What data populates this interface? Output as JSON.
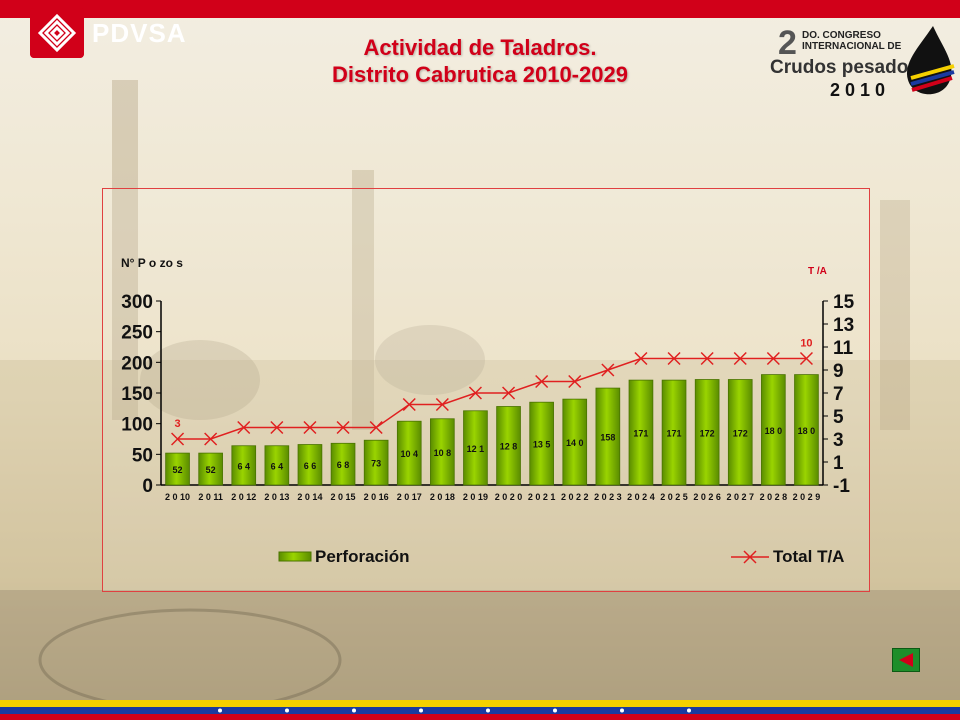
{
  "header": {
    "logo_text": "PDVSA",
    "title_line1": "Actividad de Taladros.",
    "title_line2": "Distrito Cabrutica 2010-2029"
  },
  "congress_logo": {
    "number": "2",
    "line1": "DO. CONGRESO",
    "line2": "INTERNACIONAL DE",
    "line3": "Crudos pesados",
    "year": "2 0 1 0"
  },
  "colors": {
    "brand_red": "#d10019",
    "bar_green": "#7cb800",
    "line_red": "#e02020",
    "flag_yellow": "#f5d000",
    "flag_blue": "#1a3aa0"
  },
  "icons": {
    "back_button": "back-triangle-icon"
  },
  "chart_data": {
    "type": "bar",
    "ylabel_left": "N° P o zo s",
    "ylabel_right": "T /A",
    "categories": [
      "2 0 10",
      "2 0 11",
      "2 0 12",
      "2 0 13",
      "2 0 14",
      "2 0 15",
      "2 0 16",
      "2 0 17",
      "2 0 18",
      "2 0 19",
      "2 0 2 0",
      "2 0 2 1",
      "2 0 2 2",
      "2 0 2 3",
      "2 0 2 4",
      "2 0 2 5",
      "2 0 2 6",
      "2 0 2 7",
      "2 0 2 8",
      "2 0 2 9"
    ],
    "bar_labels": [
      "52",
      "52",
      "6 4",
      "6 4",
      "6 6",
      "6 8",
      "73",
      "10 4",
      "10 8",
      "12 1",
      "12 8",
      "13 5",
      "14 0",
      "158",
      "171",
      "171",
      "172",
      "172",
      "18 0",
      "18 0"
    ],
    "ylim_left": [
      0,
      300
    ],
    "yticks_left": [
      0,
      50,
      100,
      150,
      200,
      250,
      300
    ],
    "ylim_right": [
      -1,
      15
    ],
    "yticks_right": [
      -1,
      1,
      3,
      5,
      7,
      9,
      11,
      13,
      15
    ],
    "series": [
      {
        "name": "Perforación",
        "axis": "left",
        "kind": "bar",
        "values": [
          52,
          52,
          64,
          64,
          66,
          68,
          73,
          104,
          108,
          121,
          128,
          135,
          140,
          158,
          171,
          171,
          172,
          172,
          180,
          180
        ]
      },
      {
        "name": "Total T/A",
        "axis": "right",
        "kind": "line",
        "values": [
          3,
          3,
          4,
          4,
          4,
          4,
          4,
          6,
          6,
          7,
          7,
          8,
          8,
          9,
          10,
          10,
          10,
          10,
          10,
          10
        ]
      }
    ],
    "annotations": [
      {
        "text": "3",
        "index": 0,
        "series": "Total T/A"
      },
      {
        "text": "10",
        "index": 19,
        "series": "Total T/A"
      }
    ],
    "legend": {
      "position": "bottom",
      "bar_label": "Perforación",
      "line_label": "Total T/A"
    }
  }
}
